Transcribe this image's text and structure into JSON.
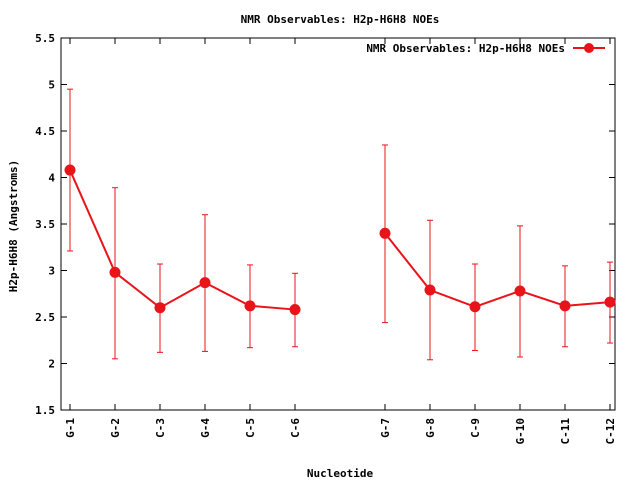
{
  "chart_data": {
    "type": "line",
    "title": "NMR Observables: H2p-H6H8 NOEs",
    "xlabel": "Nucleotide",
    "ylabel": "H2p-H6H8 (Angstroms)",
    "ylim": [
      1.5,
      5.5
    ],
    "yticks": [
      "1.5",
      "2",
      "2.5",
      "3",
      "3.5",
      "4",
      "4.5",
      "5",
      "5.5"
    ],
    "categories": [
      "G-1",
      "G-2",
      "C-3",
      "G-4",
      "C-5",
      "C-6",
      "G-7",
      "G-8",
      "C-9",
      "G-10",
      "C-11",
      "C-12"
    ],
    "category_positions": [
      1,
      2,
      3,
      4,
      5,
      6,
      8,
      9,
      10,
      11,
      12,
      13
    ],
    "legend_position": "top-right",
    "series": [
      {
        "name": "NMR Observables: H2p-H6H8 NOEs",
        "color": "#e8141a",
        "segments": [
          [
            0,
            5
          ],
          [
            6,
            11
          ]
        ],
        "values": [
          4.08,
          2.98,
          2.6,
          2.87,
          2.62,
          2.58,
          3.4,
          2.79,
          2.61,
          2.78,
          2.62,
          2.66
        ],
        "err_low": [
          3.21,
          2.05,
          2.12,
          2.13,
          2.17,
          2.18,
          2.44,
          2.04,
          2.14,
          2.07,
          2.18,
          2.22
        ],
        "err_high": [
          4.95,
          3.89,
          3.07,
          3.6,
          3.06,
          2.97,
          4.35,
          3.54,
          3.07,
          3.48,
          3.05,
          3.09
        ]
      }
    ]
  }
}
